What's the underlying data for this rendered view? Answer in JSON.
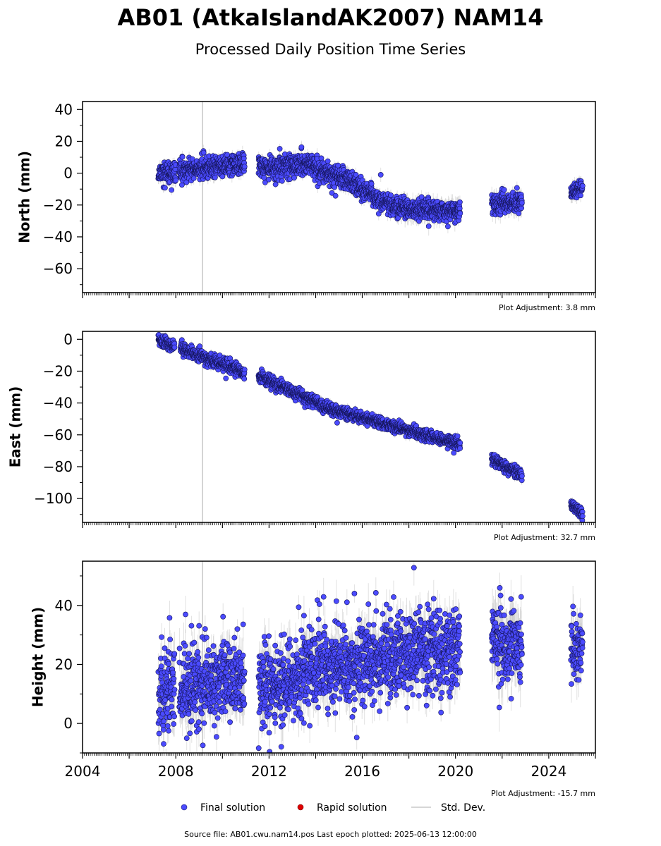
{
  "header": {
    "title": "AB01 (AtkaIslandAK2007) NAM14",
    "subtitle": "Processed Daily Position Time Series"
  },
  "legend": {
    "final": "Final solution",
    "rapid": "Rapid solution",
    "stddev": "Std. Dev."
  },
  "footer": {
    "source": "Source file: AB01.cwu.nam14.pos  Last epoch plotted: 2025-06-13 12:00:00"
  },
  "colors": {
    "final": "#4b4bff",
    "rapid": "#e00000",
    "stddev": "#c8c8c8",
    "vline": "#c8c8c8"
  },
  "chart_data": [
    {
      "type": "scatter",
      "ylabel": "North (mm)",
      "adjustment": "Plot Adjustment: 3.8 mm",
      "xlim": [
        2004,
        2026
      ],
      "ylim": [
        -75,
        45
      ],
      "yticks": [
        40,
        20,
        0,
        -20,
        -40,
        -60
      ],
      "vline": 2009.15,
      "seed": 11,
      "segments": [
        {
          "start": 2007.25,
          "end": 2008.0,
          "y0": 0,
          "y1": 0,
          "noise": 3.0,
          "err": 3
        },
        {
          "start": 2008.15,
          "end": 2010.95,
          "y0": 1,
          "y1": 6,
          "noise": 3.2,
          "err": 3
        },
        {
          "start": 2011.55,
          "end": 2012.1,
          "y0": 5,
          "y1": 3,
          "noise": 3.2,
          "err": 3
        },
        {
          "start": 2012.1,
          "end": 2013.5,
          "y0": 3,
          "y1": 6,
          "noise": 3.5,
          "err": 3
        },
        {
          "start": 2013.5,
          "end": 2015.9,
          "y0": 6,
          "y1": -8,
          "noise": 3.5,
          "err": 3
        },
        {
          "start": 2015.9,
          "end": 2017.5,
          "y0": -10,
          "y1": -22,
          "noise": 3.2,
          "err": 3
        },
        {
          "start": 2017.5,
          "end": 2020.2,
          "y0": -22,
          "y1": -24,
          "noise": 3.2,
          "err": 4
        },
        {
          "start": 2021.55,
          "end": 2022.85,
          "y0": -20,
          "y1": -18,
          "noise": 3.2,
          "err": 4
        },
        {
          "start": 2024.95,
          "end": 2025.45,
          "y0": -13,
          "y1": -8,
          "noise": 2.2,
          "err": 3
        }
      ]
    },
    {
      "type": "scatter",
      "ylabel": "East (mm)",
      "adjustment": "Plot Adjustment: 32.7 mm",
      "xlim": [
        2004,
        2026
      ],
      "ylim": [
        -115,
        5
      ],
      "yticks": [
        0,
        -20,
        -40,
        -60,
        -80,
        -100
      ],
      "vline": 2009.15,
      "seed": 23,
      "segments": [
        {
          "start": 2007.25,
          "end": 2007.95,
          "y0": -1,
          "y1": -4,
          "noise": 1.8,
          "err": 2
        },
        {
          "start": 2008.2,
          "end": 2010.95,
          "y0": -6,
          "y1": -21,
          "noise": 1.8,
          "err": 2
        },
        {
          "start": 2011.55,
          "end": 2014.2,
          "y0": -23,
          "y1": -41,
          "noise": 1.8,
          "err": 2
        },
        {
          "start": 2014.2,
          "end": 2020.2,
          "y0": -42,
          "y1": -66,
          "noise": 1.8,
          "err": 2
        },
        {
          "start": 2021.55,
          "end": 2022.85,
          "y0": -75,
          "y1": -85,
          "noise": 1.8,
          "err": 2
        },
        {
          "start": 2024.95,
          "end": 2025.45,
          "y0": -104,
          "y1": -110,
          "noise": 1.5,
          "err": 2
        }
      ]
    },
    {
      "type": "scatter",
      "ylabel": "Height (mm)",
      "adjustment": "Plot Adjustment: -15.7 mm",
      "xlim": [
        2004,
        2026
      ],
      "ylim": [
        -10,
        55
      ],
      "yticks": [
        40,
        20,
        0
      ],
      "vline": 2009.15,
      "xticks": [
        "2004",
        "2008",
        "2012",
        "2016",
        "2020",
        "2024"
      ],
      "seed": 37,
      "segments": [
        {
          "start": 2007.25,
          "end": 2007.95,
          "y0": 10,
          "y1": 12,
          "noise": 6.5,
          "err": 5
        },
        {
          "start": 2008.15,
          "end": 2010.95,
          "y0": 12,
          "y1": 16,
          "noise": 6.5,
          "err": 5
        },
        {
          "start": 2011.55,
          "end": 2013.5,
          "y0": 13,
          "y1": 16,
          "noise": 7.0,
          "err": 5
        },
        {
          "start": 2013.5,
          "end": 2020.2,
          "y0": 18,
          "y1": 26,
          "noise": 7.0,
          "err": 5
        },
        {
          "start": 2021.55,
          "end": 2022.85,
          "y0": 28,
          "y1": 26,
          "noise": 6.5,
          "err": 6
        },
        {
          "start": 2024.95,
          "end": 2025.45,
          "y0": 26,
          "y1": 25,
          "noise": 5.5,
          "err": 5
        }
      ]
    }
  ]
}
